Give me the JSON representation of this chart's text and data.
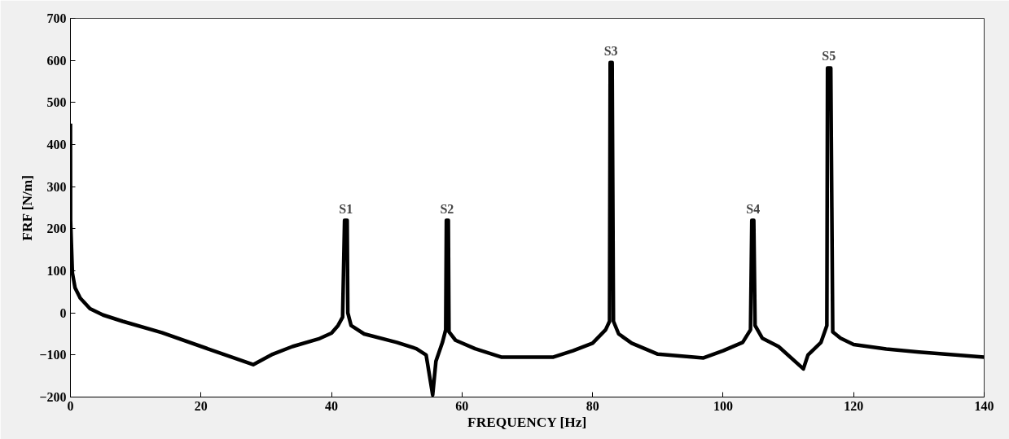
{
  "chart_data": {
    "type": "line",
    "xlabel": "FREQUENCY [Hz]",
    "ylabel": "FRF [N/m]",
    "x": [
      0,
      0.02,
      0.3,
      0.7,
      1.5,
      3,
      5,
      8,
      14,
      28,
      31,
      34,
      38,
      40,
      41,
      41.7,
      42,
      42.4,
      42.5,
      43,
      45,
      50,
      53,
      54.5,
      55.5,
      56,
      57,
      57.5,
      57.6,
      57.9,
      58,
      59,
      62,
      66,
      74,
      77,
      80,
      82,
      82.6,
      82.7,
      83,
      83.2,
      84,
      86,
      90,
      97,
      100,
      103,
      104.2,
      104.4,
      104.7,
      104.9,
      106,
      108.5,
      112.3,
      113,
      115,
      115.9,
      116,
      116.5,
      116.8,
      118,
      120,
      125,
      130,
      140
    ],
    "series": [
      {
        "color": "#000000",
        "values": [
          450,
          220,
          95,
          60,
          35,
          10,
          -5,
          -20,
          -47,
          -123,
          -98,
          -80,
          -62,
          -48,
          -30,
          -10,
          220,
          220,
          0,
          -30,
          -50,
          -70,
          -85,
          -100,
          -195,
          -115,
          -70,
          -40,
          220,
          220,
          -45,
          -65,
          -85,
          -105,
          -105,
          -90,
          -72,
          -40,
          -20,
          595,
          595,
          -20,
          -50,
          -72,
          -98,
          -107,
          -90,
          -70,
          -40,
          220,
          220,
          -30,
          -60,
          -80,
          -133,
          -100,
          -70,
          -30,
          582,
          582,
          -45,
          -60,
          -75,
          -86,
          -93,
          -105
        ]
      }
    ],
    "xlim": [
      0,
      140
    ],
    "ylim": [
      -200,
      700
    ],
    "xticks": [
      0,
      20,
      40,
      60,
      80,
      100,
      120,
      140
    ],
    "yticks": [
      -200,
      -100,
      0,
      100,
      200,
      300,
      400,
      500,
      600,
      700
    ],
    "grid": false,
    "marker": "none",
    "line_style": "solid",
    "annotations": [
      {
        "text": "S1",
        "x": 42.2,
        "y": 220
      },
      {
        "text": "S2",
        "x": 57.7,
        "y": 220
      },
      {
        "text": "S3",
        "x": 82.8,
        "y": 595
      },
      {
        "text": "S4",
        "x": 104.6,
        "y": 220
      },
      {
        "text": "S5",
        "x": 116.2,
        "y": 582
      }
    ]
  }
}
